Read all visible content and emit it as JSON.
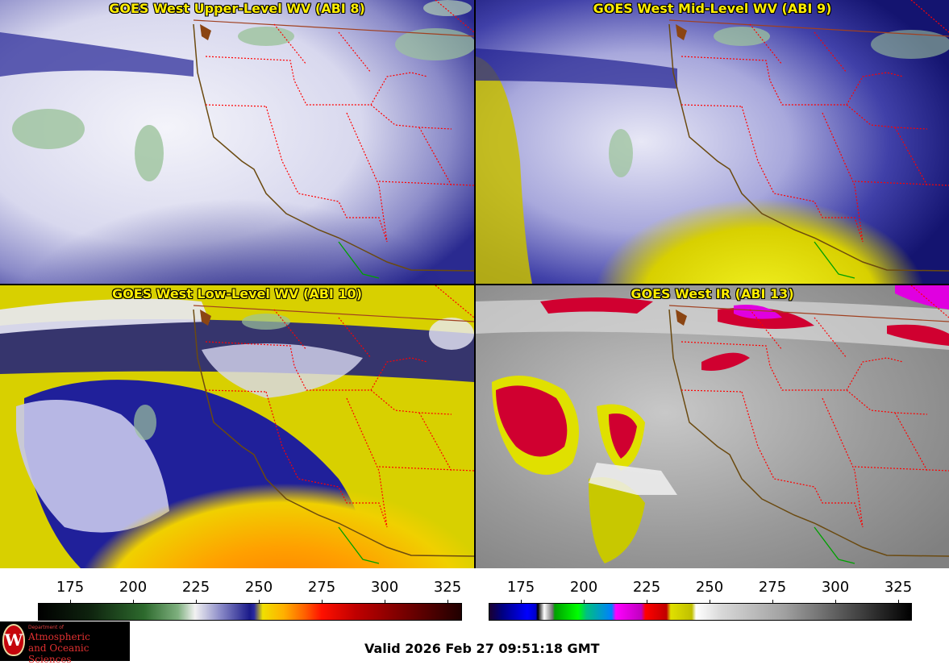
{
  "panels": [
    {
      "title": "GOES West Upper-Level WV (ABI 8)",
      "colormap": "wv"
    },
    {
      "title": "GOES West Mid-Level WV (ABI 9)",
      "colormap": "wv"
    },
    {
      "title": "GOES West Low-Level WV (ABI 10)",
      "colormap": "wv"
    },
    {
      "title": "GOES West IR (ABI 13)",
      "colormap": "ir"
    }
  ],
  "colorbars": {
    "wv": {
      "ticks": [
        "175",
        "200",
        "225",
        "250",
        "275",
        "300",
        "325"
      ]
    },
    "ir": {
      "ticks": [
        "175",
        "200",
        "225",
        "250",
        "275",
        "300",
        "325"
      ]
    }
  },
  "logo": {
    "dept": "Department of",
    "line1": "Atmospheric",
    "line2": "and Oceanic Sciences",
    "seal_letter": "W"
  },
  "valid_time": "Valid 2026 Feb 27 09:51:18 GMT",
  "colors": {
    "coast": "#6b4a10",
    "state_border": "#ff0000",
    "title": "#ffee00"
  }
}
